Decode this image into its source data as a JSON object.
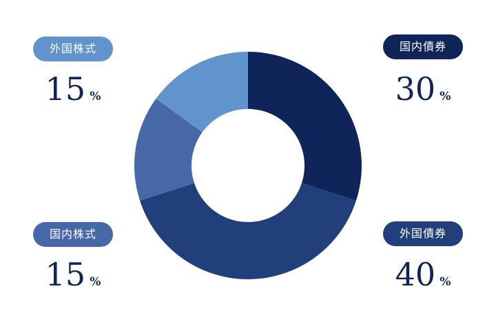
{
  "chart_data": {
    "type": "pie",
    "donut": true,
    "unit": "%",
    "slices": [
      {
        "label": "国内債券",
        "value": 30,
        "color": "#0f2559"
      },
      {
        "label": "外国債券",
        "value": 40,
        "color": "#21407b"
      },
      {
        "label": "国内株式",
        "value": 15,
        "color": "#4668a6"
      },
      {
        "label": "外国株式",
        "value": 15,
        "color": "#6193cc"
      }
    ]
  }
}
